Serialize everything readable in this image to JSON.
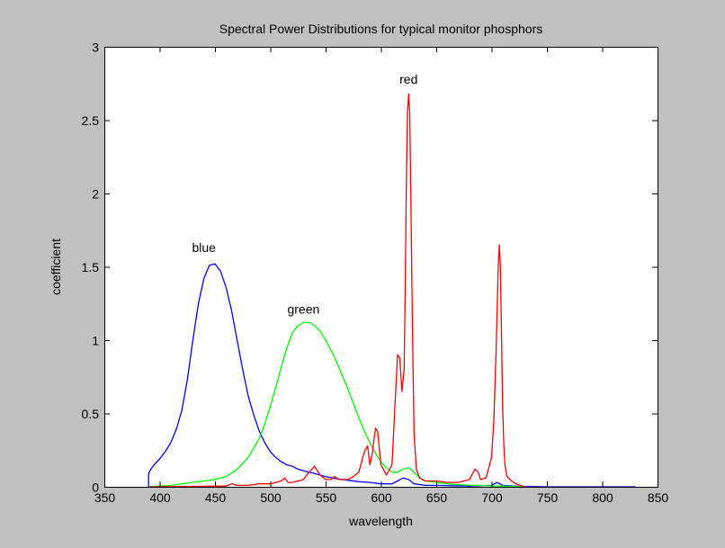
{
  "chart_data": {
    "type": "line",
    "title": "Spectral Power Distributions for typical monitor phosphors",
    "xlabel": "wavelength",
    "ylabel": "coefficient",
    "xlim": [
      350,
      850
    ],
    "ylim": [
      0,
      3
    ],
    "xticks": [
      350,
      400,
      450,
      500,
      550,
      600,
      650,
      700,
      750,
      800,
      850
    ],
    "yticks": [
      0,
      0.5,
      1,
      1.5,
      2,
      2.5,
      3
    ],
    "ytick_labels": [
      "0",
      "0.5",
      "1",
      "1.5",
      "2",
      "2.5",
      "3"
    ],
    "grid": false,
    "legend": "none",
    "colors": {
      "background": "#c0c0c0",
      "axes": "#ffffff",
      "frame": "#000000"
    },
    "series": [
      {
        "label": "blue",
        "color": "#0000ff",
        "x": [
          390,
          390,
          392,
          395,
          400,
          405,
          410,
          415,
          420,
          425,
          430,
          435,
          440,
          445,
          450,
          455,
          460,
          465,
          470,
          475,
          480,
          485,
          490,
          495,
          500,
          505,
          510,
          515,
          520,
          525,
          530,
          535,
          540,
          545,
          550,
          560,
          570,
          580,
          590,
          600,
          610,
          615,
          620,
          625,
          630,
          640,
          650,
          680,
          700,
          705,
          710,
          720,
          730,
          750,
          800,
          830
        ],
        "y": [
          0,
          0.09,
          0.12,
          0.15,
          0.19,
          0.24,
          0.3,
          0.39,
          0.52,
          0.73,
          1.0,
          1.25,
          1.42,
          1.51,
          1.52,
          1.47,
          1.36,
          1.2,
          1.0,
          0.8,
          0.62,
          0.49,
          0.38,
          0.3,
          0.24,
          0.2,
          0.17,
          0.15,
          0.14,
          0.12,
          0.11,
          0.1,
          0.09,
          0.08,
          0.07,
          0.055,
          0.045,
          0.035,
          0.03,
          0.02,
          0.02,
          0.04,
          0.06,
          0.05,
          0.02,
          0.01,
          0.01,
          0.005,
          0.01,
          0.03,
          0.01,
          0.005,
          0.002,
          0,
          0,
          0
        ]
      },
      {
        "label": "green",
        "color": "#00ff00",
        "x": [
          390,
          400,
          410,
          420,
          430,
          440,
          450,
          460,
          470,
          480,
          490,
          495,
          500,
          505,
          510,
          515,
          520,
          525,
          530,
          535,
          540,
          545,
          550,
          555,
          560,
          565,
          570,
          575,
          580,
          585,
          590,
          595,
          600,
          605,
          610,
          615,
          620,
          625,
          630,
          635,
          640,
          650,
          660,
          670,
          680,
          690,
          700,
          710,
          720,
          730
        ],
        "y": [
          0,
          0.005,
          0.01,
          0.02,
          0.03,
          0.04,
          0.05,
          0.07,
          0.12,
          0.2,
          0.33,
          0.43,
          0.55,
          0.68,
          0.82,
          0.95,
          1.05,
          1.1,
          1.12,
          1.12,
          1.1,
          1.06,
          1.0,
          0.93,
          0.85,
          0.76,
          0.67,
          0.57,
          0.47,
          0.38,
          0.3,
          0.23,
          0.17,
          0.13,
          0.1,
          0.1,
          0.12,
          0.13,
          0.1,
          0.06,
          0.04,
          0.03,
          0.02,
          0.015,
          0.01,
          0.01,
          0.005,
          0.005,
          0.002,
          0
        ]
      },
      {
        "label": "red",
        "color": "#ff0000",
        "x": [
          390,
          460,
          465,
          470,
          480,
          490,
          500,
          510,
          513,
          516,
          520,
          530,
          535,
          540,
          545,
          550,
          555,
          558,
          562,
          570,
          575,
          580,
          585,
          588,
          590,
          592,
          595,
          597,
          600,
          605,
          610,
          613,
          615,
          617,
          619,
          621,
          622,
          623,
          624,
          625,
          626,
          627,
          628,
          629,
          630,
          632,
          635,
          640,
          650,
          660,
          670,
          680,
          685,
          688,
          690,
          695,
          700,
          702,
          704,
          706,
          707,
          708,
          709,
          710,
          711,
          712,
          714,
          718,
          722,
          730
        ],
        "y": [
          0,
          0.005,
          0.02,
          0.01,
          0.01,
          0.02,
          0.02,
          0.04,
          0.06,
          0.03,
          0.03,
          0.05,
          0.1,
          0.14,
          0.08,
          0.05,
          0.05,
          0.07,
          0.05,
          0.05,
          0.07,
          0.1,
          0.24,
          0.28,
          0.15,
          0.22,
          0.4,
          0.38,
          0.15,
          0.08,
          0.15,
          0.6,
          0.9,
          0.88,
          0.65,
          0.8,
          1.4,
          2.1,
          2.55,
          2.68,
          2.55,
          2.0,
          1.4,
          0.8,
          0.35,
          0.12,
          0.06,
          0.04,
          0.04,
          0.03,
          0.03,
          0.05,
          0.12,
          0.1,
          0.05,
          0.06,
          0.2,
          0.45,
          0.9,
          1.5,
          1.65,
          1.5,
          1.0,
          0.55,
          0.3,
          0.15,
          0.07,
          0.04,
          0.02,
          0
        ]
      }
    ],
    "annotations": [
      {
        "text": "blue",
        "x": 440,
        "y": 1.6
      },
      {
        "text": "green",
        "x": 530,
        "y": 1.18
      },
      {
        "text": "red",
        "x": 625,
        "y": 2.75
      }
    ]
  }
}
